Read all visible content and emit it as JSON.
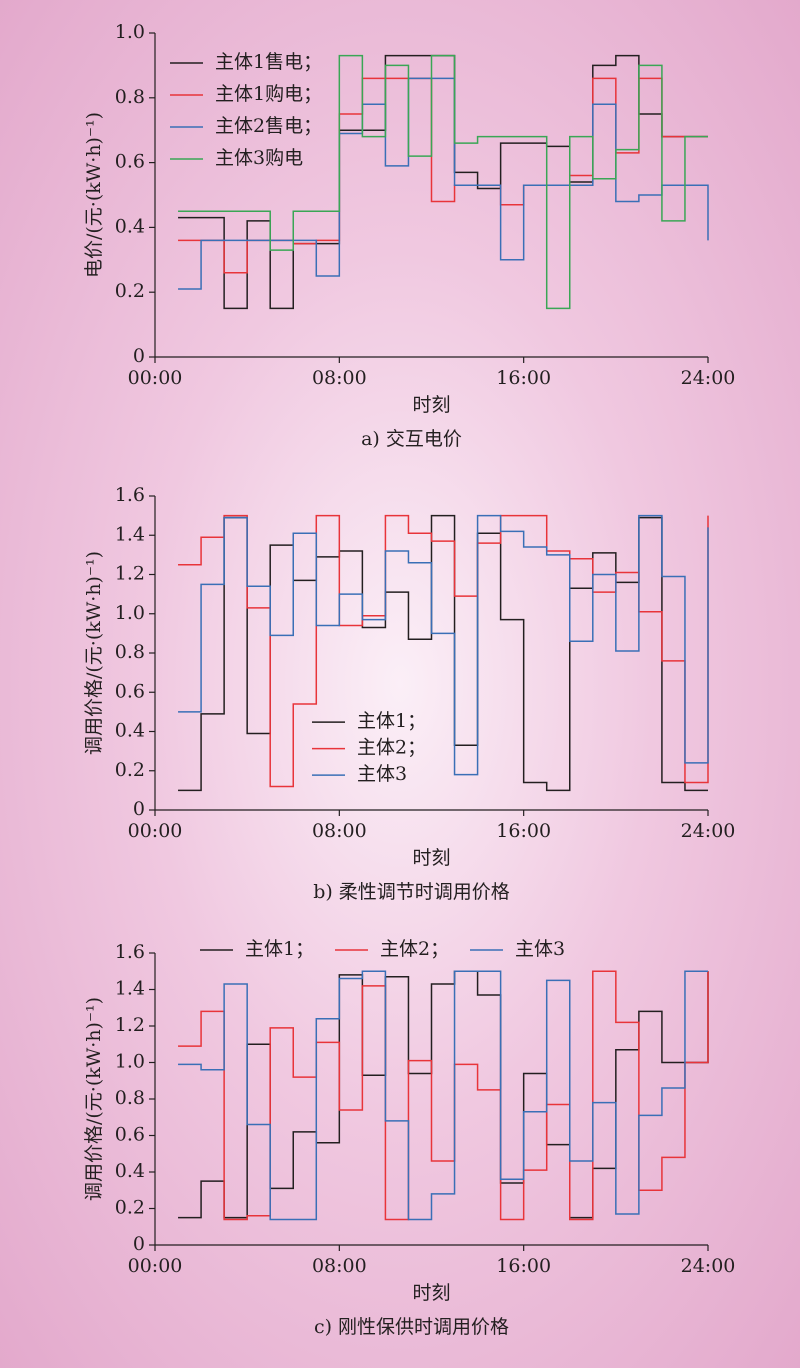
{
  "chart_data": [
    {
      "type": "line",
      "step": "post",
      "title": "a) 交互电价",
      "xlabel": "时刻",
      "ylabel": "电价/(元·(kW·h)⁻¹)",
      "legend": "upper left",
      "x": [
        1,
        2,
        3,
        4,
        5,
        6,
        7,
        8,
        9,
        10,
        11,
        12,
        13,
        14,
        15,
        16,
        17,
        18,
        19,
        20,
        21,
        22,
        23,
        24
      ],
      "xlim": [
        0,
        24
      ],
      "xticks": [
        {
          "value": 0,
          "label": "00:00"
        },
        {
          "value": 8,
          "label": "08:00"
        },
        {
          "value": 16,
          "label": "16:00"
        },
        {
          "value": 24,
          "label": "24:00"
        }
      ],
      "ylim": [
        0,
        1
      ],
      "yticks": [
        0,
        0.2,
        0.4,
        0.6,
        0.8,
        {
          "value": 1,
          "label": "1.0"
        }
      ],
      "series": [
        {
          "name": "主体1售电；",
          "color": "#231f20",
          "values": [
            0.43,
            0.43,
            0.15,
            0.42,
            0.15,
            0.35,
            0.35,
            0.7,
            0.7,
            0.93,
            0.93,
            0.93,
            0.57,
            0.52,
            0.66,
            0.66,
            0.65,
            0.54,
            0.9,
            0.93,
            0.75,
            0.68,
            0.68,
            0.68
          ]
        },
        {
          "name": "主体1购电；",
          "color": "#e8343a",
          "values": [
            0.36,
            0.36,
            0.26,
            0.36,
            0.36,
            0.35,
            0.36,
            0.75,
            0.86,
            0.86,
            0.86,
            0.48,
            0.53,
            0.53,
            0.47,
            0.53,
            0.53,
            0.56,
            0.86,
            0.63,
            0.86,
            0.68,
            0.68,
            0.68
          ]
        },
        {
          "name": "主体2售电；",
          "color": "#3a6fb6",
          "values": [
            0.21,
            0.36,
            0.36,
            0.36,
            0.36,
            0.36,
            0.25,
            0.69,
            0.78,
            0.59,
            0.86,
            0.86,
            0.53,
            0.53,
            0.3,
            0.53,
            0.53,
            0.53,
            0.78,
            0.48,
            0.5,
            0.53,
            0.53,
            0.36
          ]
        },
        {
          "name": "主体3购电",
          "color": "#3aa655",
          "values": [
            0.45,
            0.45,
            0.45,
            0.45,
            0.33,
            0.45,
            0.45,
            0.93,
            0.68,
            0.9,
            0.62,
            0.93,
            0.66,
            0.68,
            0.68,
            0.68,
            0.15,
            0.68,
            0.55,
            0.64,
            0.9,
            0.42,
            0.68,
            0.68
          ]
        }
      ]
    },
    {
      "type": "line",
      "step": "post",
      "title": "b) 柔性调节时调用价格",
      "xlabel": "时刻",
      "ylabel": "调用价格/(元·(kW·h)⁻¹)",
      "legend": "center",
      "x": [
        1,
        2,
        3,
        4,
        5,
        6,
        7,
        8,
        9,
        10,
        11,
        12,
        13,
        14,
        15,
        16,
        17,
        18,
        19,
        20,
        21,
        22,
        23,
        24
      ],
      "xlim": [
        0,
        24
      ],
      "xticks": [
        {
          "value": 0,
          "label": "00:00"
        },
        {
          "value": 8,
          "label": "08:00"
        },
        {
          "value": 16,
          "label": "16:00"
        },
        {
          "value": 24,
          "label": "24:00"
        }
      ],
      "ylim": [
        0,
        1.6
      ],
      "yticks": [
        0,
        0.2,
        0.4,
        0.6,
        0.8,
        {
          "value": 1,
          "label": "1.0"
        },
        1.2,
        1.4,
        1.6
      ],
      "series": [
        {
          "name": "主体1；",
          "color": "#231f20",
          "values": [
            0.1,
            0.49,
            1.49,
            0.39,
            1.35,
            1.17,
            1.29,
            1.32,
            0.93,
            1.11,
            0.87,
            1.5,
            0.33,
            1.41,
            0.97,
            0.14,
            0.1,
            1.13,
            1.31,
            1.16,
            1.49,
            0.14,
            0.1,
            0.1
          ]
        },
        {
          "name": "主体2；",
          "color": "#e8343a",
          "values": [
            1.25,
            1.39,
            1.5,
            1.03,
            0.12,
            0.54,
            1.5,
            0.94,
            0.99,
            1.5,
            1.41,
            1.37,
            1.09,
            1.36,
            1.5,
            1.5,
            1.32,
            1.28,
            1.11,
            1.21,
            1.01,
            0.76,
            0.14,
            1.5
          ]
        },
        {
          "name": "主体3",
          "color": "#3a6fb6",
          "values": [
            0.5,
            1.15,
            1.49,
            1.14,
            0.89,
            1.41,
            0.94,
            1.1,
            0.97,
            1.32,
            1.26,
            0.9,
            0.18,
            1.5,
            1.42,
            1.34,
            1.3,
            0.86,
            1.2,
            0.81,
            1.5,
            1.19,
            0.24,
            1.44
          ]
        }
      ]
    },
    {
      "type": "line",
      "step": "post",
      "title": "c) 刚性保供时调用价格",
      "xlabel": "时刻",
      "ylabel": "调用价格/(元·(kW·h)⁻¹)",
      "legend": "upper center",
      "x": [
        1,
        2,
        3,
        4,
        5,
        6,
        7,
        8,
        9,
        10,
        11,
        12,
        13,
        14,
        15,
        16,
        17,
        18,
        19,
        20,
        21,
        22,
        23,
        24
      ],
      "xlim": [
        0,
        24
      ],
      "xticks": [
        {
          "value": 0,
          "label": "00:00"
        },
        {
          "value": 8,
          "label": "08:00"
        },
        {
          "value": 16,
          "label": "16:00"
        },
        {
          "value": 24,
          "label": "24:00"
        }
      ],
      "ylim": [
        0,
        1.6
      ],
      "yticks": [
        0,
        0.2,
        0.4,
        0.6,
        0.8,
        {
          "value": 1,
          "label": "1.0"
        },
        1.2,
        1.4,
        1.6
      ],
      "series": [
        {
          "name": "主体1；",
          "color": "#231f20",
          "values": [
            0.15,
            0.35,
            0.15,
            1.1,
            0.31,
            0.62,
            0.56,
            1.48,
            0.93,
            1.47,
            0.94,
            1.43,
            1.5,
            1.37,
            0.34,
            0.94,
            0.55,
            0.15,
            0.42,
            1.07,
            1.28,
            1.0,
            1.0,
            1.5
          ]
        },
        {
          "name": "主体2；",
          "color": "#e8343a",
          "values": [
            1.09,
            1.28,
            0.14,
            0.16,
            1.19,
            0.92,
            1.11,
            0.74,
            1.42,
            0.14,
            1.01,
            0.46,
            0.99,
            0.85,
            0.14,
            0.41,
            0.77,
            0.14,
            1.5,
            1.22,
            0.3,
            0.48,
            1.0,
            1.5
          ]
        },
        {
          "name": "主体3",
          "color": "#3a6fb6",
          "values": [
            0.99,
            0.96,
            1.43,
            0.66,
            0.14,
            0.14,
            1.24,
            1.46,
            1.5,
            0.68,
            0.14,
            0.28,
            1.5,
            1.5,
            0.36,
            0.73,
            1.45,
            0.46,
            0.78,
            0.17,
            0.71,
            0.86,
            1.5,
            1.5
          ]
        }
      ]
    }
  ]
}
